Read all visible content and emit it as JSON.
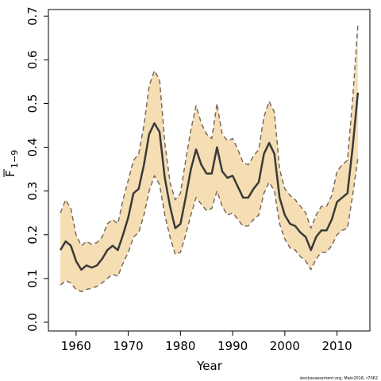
{
  "chart_data": {
    "type": "line",
    "title": "",
    "xlabel": "Year",
    "ylabel_main": "F",
    "ylabel_sub": "1−9",
    "xlim": [
      1954.7,
      2016.3
    ],
    "ylim": [
      -0.02,
      0.715
    ],
    "x_ticks": [
      1960,
      1970,
      1980,
      1990,
      2000,
      2010
    ],
    "y_ticks": [
      0.0,
      0.1,
      0.2,
      0.3,
      0.4,
      0.5,
      0.6,
      0.7
    ],
    "y_tick_labels": [
      "0.0",
      "0.1",
      "0.2",
      "0.3",
      "0.4",
      "0.5",
      "0.6",
      "0.7"
    ],
    "grid": false,
    "band_color": "#f5deb3",
    "estimate_color": "#3a3a3a",
    "bound_color": "#7a6a60",
    "x": [
      1957,
      1958,
      1959,
      1960,
      1961,
      1962,
      1963,
      1964,
      1965,
      1966,
      1967,
      1968,
      1969,
      1970,
      1971,
      1972,
      1973,
      1974,
      1975,
      1976,
      1977,
      1978,
      1979,
      1980,
      1981,
      1982,
      1983,
      1984,
      1985,
      1986,
      1987,
      1988,
      1989,
      1990,
      1991,
      1992,
      1993,
      1994,
      1995,
      1996,
      1997,
      1998,
      1999,
      2000,
      2001,
      2002,
      2003,
      2004,
      2005,
      2006,
      2007,
      2008,
      2009,
      2010,
      2011,
      2012,
      2013,
      2014
    ],
    "series": [
      {
        "values": [
          0.165,
          0.185,
          0.175,
          0.14,
          0.12,
          0.13,
          0.125,
          0.13,
          0.145,
          0.165,
          0.175,
          0.165,
          0.2,
          0.24,
          0.295,
          0.305,
          0.36,
          0.43,
          0.455,
          0.435,
          0.33,
          0.265,
          0.215,
          0.225,
          0.285,
          0.35,
          0.395,
          0.36,
          0.34,
          0.34,
          0.4,
          0.345,
          0.33,
          0.335,
          0.31,
          0.285,
          0.285,
          0.305,
          0.32,
          0.385,
          0.41,
          0.385,
          0.285,
          0.245,
          0.225,
          0.22,
          0.205,
          0.195,
          0.165,
          0.195,
          0.21,
          0.21,
          0.235,
          0.275,
          0.285,
          0.295,
          0.4,
          0.525
        ]
      },
      {
        "values": [
          0.25,
          0.28,
          0.26,
          0.2,
          0.175,
          0.185,
          0.178,
          0.182,
          0.195,
          0.225,
          0.235,
          0.225,
          0.28,
          0.325,
          0.37,
          0.385,
          0.45,
          0.54,
          0.575,
          0.555,
          0.41,
          0.32,
          0.28,
          0.295,
          0.37,
          0.44,
          0.495,
          0.455,
          0.43,
          0.42,
          0.5,
          0.43,
          0.415,
          0.42,
          0.395,
          0.365,
          0.36,
          0.38,
          0.395,
          0.47,
          0.505,
          0.48,
          0.35,
          0.305,
          0.29,
          0.28,
          0.265,
          0.25,
          0.215,
          0.245,
          0.265,
          0.265,
          0.29,
          0.345,
          0.36,
          0.37,
          0.51,
          0.68
        ]
      },
      {
        "values": [
          0.085,
          0.095,
          0.09,
          0.075,
          0.07,
          0.075,
          0.078,
          0.082,
          0.09,
          0.1,
          0.11,
          0.105,
          0.135,
          0.16,
          0.195,
          0.205,
          0.245,
          0.3,
          0.335,
          0.315,
          0.245,
          0.195,
          0.155,
          0.16,
          0.2,
          0.245,
          0.285,
          0.27,
          0.255,
          0.26,
          0.3,
          0.265,
          0.245,
          0.25,
          0.235,
          0.22,
          0.22,
          0.235,
          0.245,
          0.295,
          0.32,
          0.3,
          0.225,
          0.19,
          0.17,
          0.165,
          0.15,
          0.14,
          0.12,
          0.145,
          0.16,
          0.16,
          0.175,
          0.2,
          0.21,
          0.215,
          0.29,
          0.375
        ]
      }
    ]
  },
  "credit": "stockassessment.org, Main2016, r7062"
}
